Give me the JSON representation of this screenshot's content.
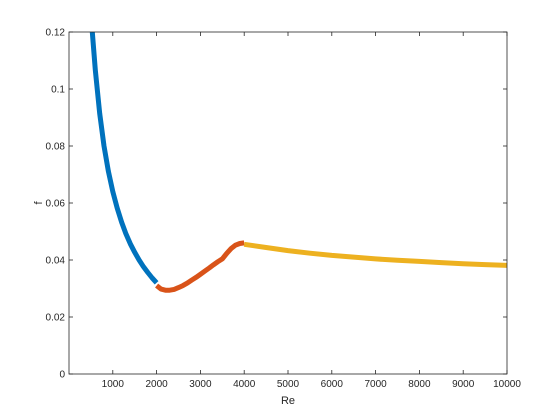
{
  "chart_data": {
    "type": "line",
    "title": "",
    "xlabel": "Re",
    "ylabel": "f",
    "xlim": [
      0,
      10000
    ],
    "ylim": [
      0,
      0.12
    ],
    "xticks": [
      1000,
      2000,
      3000,
      4000,
      5000,
      6000,
      7000,
      8000,
      9000,
      10000
    ],
    "yticks": [
      0,
      0.02,
      0.04,
      0.06,
      0.08,
      0.1,
      0.12
    ],
    "xtick_labels": [
      "1000",
      "2000",
      "3000",
      "4000",
      "5000",
      "6000",
      "7000",
      "8000",
      "9000",
      "10000"
    ],
    "ytick_labels": [
      "0",
      "0.02",
      "0.04",
      "0.06",
      "0.08",
      "0.1",
      "0.12"
    ],
    "grid": false,
    "legend": "none",
    "series": [
      {
        "color": "#0072bd",
        "x": [
          533,
          600,
          700,
          800,
          900,
          1000,
          1100,
          1200,
          1300,
          1400,
          1500,
          1600,
          1700,
          1800,
          1900,
          2000
        ],
        "y": [
          0.12,
          0.1067,
          0.0914,
          0.08,
          0.0711,
          0.064,
          0.0582,
          0.0533,
          0.0492,
          0.0457,
          0.0427,
          0.04,
          0.0376,
          0.0356,
          0.0337,
          0.032
        ]
      },
      {
        "color": "#d95319",
        "x": [
          2000,
          2100,
          2200,
          2300,
          2400,
          2500,
          2600,
          2700,
          2800,
          2900,
          3000,
          3100,
          3200,
          3300,
          3400,
          3500,
          3600,
          3700,
          3800,
          3900,
          4000
        ],
        "y": [
          0.031,
          0.0298,
          0.0294,
          0.0294,
          0.0297,
          0.0303,
          0.031,
          0.0319,
          0.0329,
          0.0339,
          0.035,
          0.0361,
          0.0372,
          0.0383,
          0.0394,
          0.0404,
          0.0423,
          0.044,
          0.0452,
          0.0458,
          0.046
        ]
      },
      {
        "color": "#edb120",
        "x": [
          4000,
          4500,
          5000,
          5500,
          6000,
          6500,
          7000,
          7500,
          8000,
          8500,
          9000,
          9500,
          10000
        ],
        "y": [
          0.0455,
          0.0444,
          0.0433,
          0.0424,
          0.0416,
          0.041,
          0.0404,
          0.0399,
          0.0395,
          0.0391,
          0.0387,
          0.0384,
          0.0381
        ]
      }
    ]
  }
}
